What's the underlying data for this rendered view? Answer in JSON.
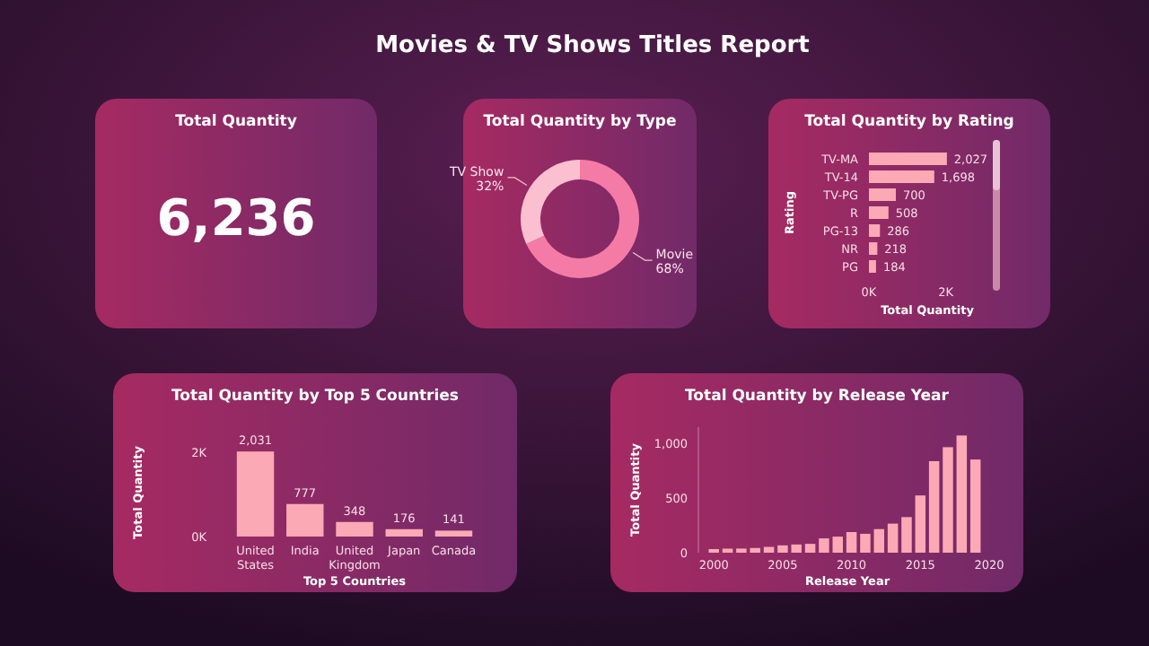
{
  "chart_data": [
    {
      "type": "other",
      "title": "Movies & TV Shows Titles Report"
    },
    {
      "type": "other",
      "title": "Total Quantity",
      "annotations": [
        "6,236"
      ]
    },
    {
      "type": "donut",
      "title": "Total Quantity by Type",
      "categories": [
        "Movie",
        "TV Show"
      ],
      "values": [
        68,
        32
      ],
      "colors": [
        "#f47ba6",
        "#fbbfd0"
      ],
      "value_labels": [
        "68%",
        "32%"
      ]
    },
    {
      "type": "bar",
      "orientation": "horizontal",
      "title": "Total Quantity by Rating",
      "xlabel": "Total Quantity",
      "ylabel": "Rating",
      "categories": [
        "TV-MA",
        "TV-14",
        "TV-PG",
        "R",
        "PG-13",
        "NR",
        "PG"
      ],
      "values": [
        2027,
        1698,
        700,
        508,
        286,
        218,
        184
      ],
      "color": "#fba9b5",
      "xlim": [
        0,
        2100
      ],
      "xticks": [
        {
          "value": 0,
          "label": "0K"
        },
        {
          "value": 2000,
          "label": "2K"
        }
      ],
      "value_labels": [
        "2,027",
        "1,698",
        "700",
        "508",
        "286",
        "218",
        "184"
      ]
    },
    {
      "type": "bar",
      "title": "Total Quantity by Top 5 Countries",
      "xlabel": "Top 5 Countries",
      "ylabel": "Total Quantity",
      "categories": [
        "United States",
        "India",
        "United Kingdom",
        "Japan",
        "Canada"
      ],
      "values": [
        2031,
        777,
        348,
        176,
        141
      ],
      "color": "#fba9b5",
      "ylim": [
        0,
        2100
      ],
      "yticks": [
        {
          "value": 0,
          "label": "0K"
        },
        {
          "value": 2000,
          "label": "2K"
        }
      ],
      "value_labels": [
        "2,031",
        "777",
        "348",
        "176",
        "141"
      ]
    },
    {
      "type": "bar",
      "title": "Total Quantity by Release Year",
      "xlabel": "Release Year",
      "ylabel": "Total Quantity",
      "x": [
        2000,
        2001,
        2002,
        2003,
        2004,
        2005,
        2006,
        2007,
        2008,
        2009,
        2010,
        2011,
        2012,
        2013,
        2014,
        2015,
        2016,
        2017,
        2018,
        2019
      ],
      "values": [
        33,
        37,
        38,
        43,
        53,
        67,
        75,
        81,
        131,
        147,
        189,
        173,
        216,
        266,
        326,
        524,
        838,
        966,
        1073,
        853
      ],
      "color": "#fba9b5",
      "xlim": [
        1999.4,
        2020
      ],
      "xticks": [
        2000,
        2005,
        2010,
        2015,
        2020
      ],
      "ylim": [
        0,
        1150
      ],
      "yticks": [
        0,
        500,
        {
          "value": 1000,
          "label": "1,000"
        }
      ]
    }
  ]
}
